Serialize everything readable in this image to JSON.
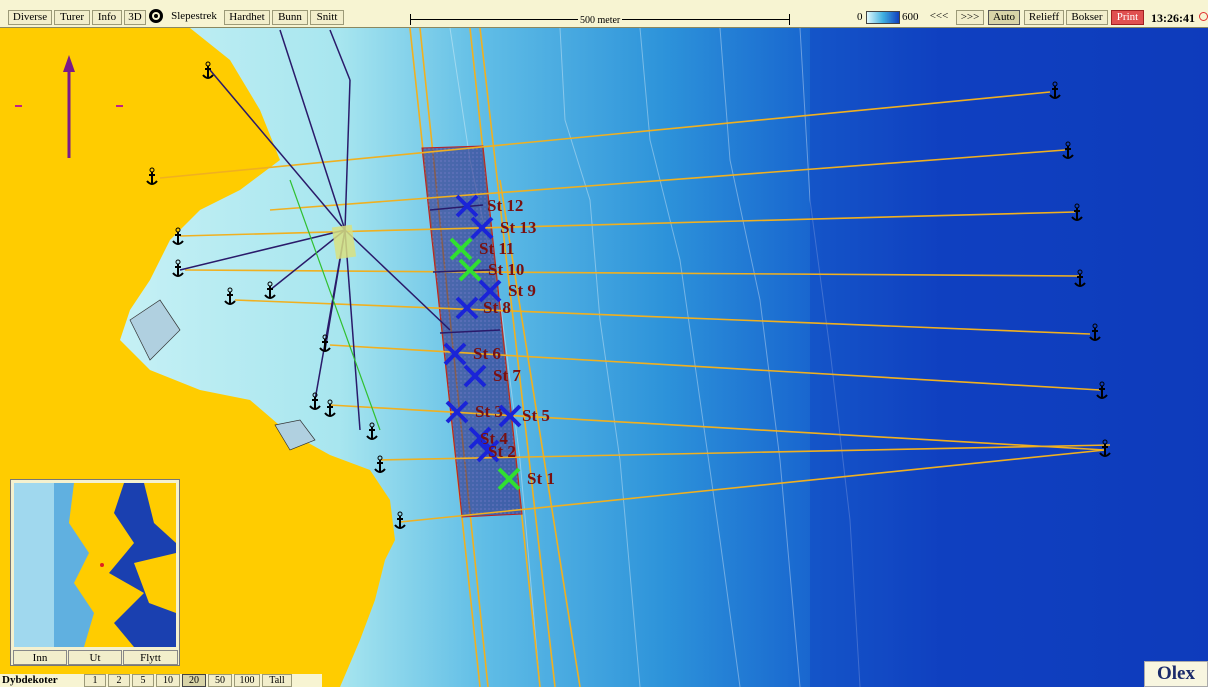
{
  "toolbar": {
    "menu": [
      "Diverse",
      "Turer",
      "Info",
      "3D"
    ],
    "tools": [
      "Slepestrek",
      "Hardhet",
      "Bunn",
      "Snitt"
    ],
    "scale_label": "500 meter",
    "depth_min": "0",
    "depth_max": "600",
    "nav_back": "<<<",
    "nav_fwd": ">>>",
    "auto": "Auto",
    "relieff": "Relieff",
    "bokser": "Bokser",
    "print": "Print",
    "clock": "13:26:41"
  },
  "stations": [
    {
      "label": "St 12",
      "color": "blue"
    },
    {
      "label": "St 13",
      "color": "blue"
    },
    {
      "label": "St 11",
      "color": "green"
    },
    {
      "label": "St 10",
      "color": "green"
    },
    {
      "label": "St 9",
      "color": "blue"
    },
    {
      "label": "St 8",
      "color": "blue"
    },
    {
      "label": "St 6",
      "color": "blue"
    },
    {
      "label": "St 7",
      "color": "blue"
    },
    {
      "label": "St 3",
      "color": "blue"
    },
    {
      "label": "St 5",
      "color": "blue"
    },
    {
      "label": "St 4",
      "color": "blue"
    },
    {
      "label": "St 2",
      "color": "blue"
    },
    {
      "label": "St 1",
      "color": "green"
    }
  ],
  "overview": {
    "buttons": [
      "Inn",
      "Ut",
      "Flytt"
    ]
  },
  "bottombar": {
    "title": "Dybdekoter",
    "levels": [
      "1",
      "2",
      "5",
      "10",
      "20",
      "50",
      "100",
      "Tall"
    ],
    "selected": "20"
  },
  "brand": "Olex",
  "colors": {
    "land": "#ffcc00",
    "shallow": "#c8f0f4",
    "deep": "#1040c0",
    "track_orange": "#f0b020",
    "track_navy": "#2a1a6a",
    "station_blue": "#1a24d8",
    "station_green": "#30e030",
    "label": "#7a1010"
  }
}
